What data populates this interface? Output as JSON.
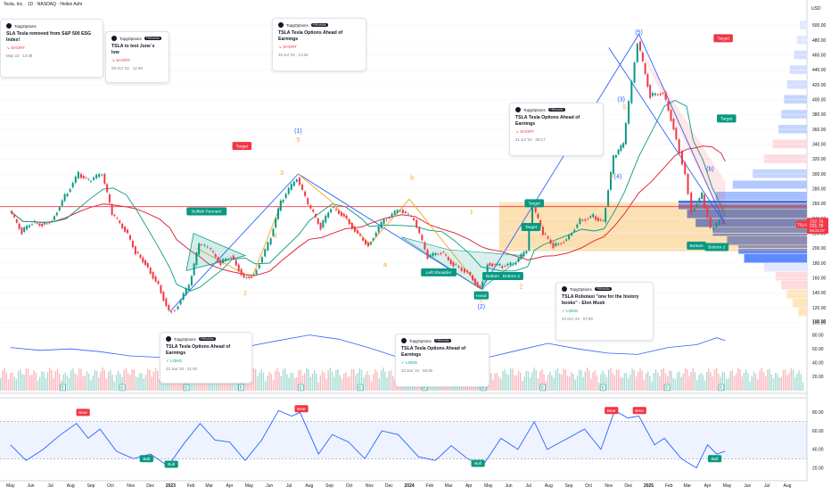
{
  "header": {
    "symbol_line": "Tesla, Inc. · 1D · NASDAQ · Heikin Ashi",
    "currency": "USD"
  },
  "chart_data": {
    "type": "candlestick",
    "title": "Tesla, Inc. · 1D · NASDAQ · Heikin Ashi",
    "x_ticks": [
      "May",
      "Jun",
      "Jul",
      "Aug",
      "Sep",
      "Oct",
      "Nov",
      "Dec",
      "2023",
      "Feb",
      "Mar",
      "Apr",
      "May",
      "Jun",
      "Jul",
      "Aug",
      "Sep",
      "Oct",
      "Nov",
      "Dec",
      "2024",
      "Feb",
      "Mar",
      "Apr",
      "May",
      "Jun",
      "Jul",
      "Aug",
      "Sep",
      "Oct",
      "Nov",
      "Dec",
      "2025",
      "Feb",
      "Mar",
      "Apr",
      "May",
      "Jun",
      "Jul",
      "Aug"
    ],
    "price_axis": {
      "ticks": [
        500,
        480,
        460,
        440,
        420,
        400,
        380,
        360,
        340,
        320,
        300,
        280,
        260,
        240,
        220,
        200,
        180,
        160,
        140,
        120,
        100
      ],
      "range": [
        90,
        510
      ]
    },
    "price_closes": [
      [
        "2022-05-01",
        250
      ],
      [
        "2022-05-20",
        222
      ],
      [
        "2022-06-05",
        235
      ],
      [
        "2022-06-20",
        232
      ],
      [
        "2022-07-05",
        238
      ],
      [
        "2022-07-25",
        270
      ],
      [
        "2022-08-15",
        300
      ],
      [
        "2022-08-30",
        290
      ],
      [
        "2022-09-20",
        300
      ],
      [
        "2022-10-05",
        245
      ],
      [
        "2022-10-25",
        225
      ],
      [
        "2022-11-10",
        195
      ],
      [
        "2022-11-25",
        180
      ],
      [
        "2022-12-15",
        150
      ],
      [
        "2022-12-31",
        115
      ],
      [
        "2023-01-10",
        118
      ],
      [
        "2023-01-31",
        150
      ],
      [
        "2023-02-15",
        205
      ],
      [
        "2023-03-01",
        200
      ],
      [
        "2023-03-20",
        180
      ],
      [
        "2023-04-05",
        190
      ],
      [
        "2023-04-25",
        160
      ],
      [
        "2023-05-10",
        165
      ],
      [
        "2023-06-01",
        205
      ],
      [
        "2023-06-20",
        262
      ],
      [
        "2023-07-15",
        295
      ],
      [
        "2023-08-01",
        258
      ],
      [
        "2023-08-20",
        228
      ],
      [
        "2023-09-05",
        255
      ],
      [
        "2023-09-25",
        244
      ],
      [
        "2023-10-20",
        214
      ],
      [
        "2023-11-01",
        205
      ],
      [
        "2023-11-25",
        238
      ],
      [
        "2023-12-20",
        252
      ],
      [
        "2024-01-10",
        238
      ],
      [
        "2024-01-31",
        188
      ],
      [
        "2024-02-20",
        195
      ],
      [
        "2024-03-10",
        178
      ],
      [
        "2024-04-01",
        168
      ],
      [
        "2024-04-20",
        145
      ],
      [
        "2024-05-01",
        180
      ],
      [
        "2024-05-20",
        176
      ],
      [
        "2024-06-10",
        178
      ],
      [
        "2024-06-30",
        197
      ],
      [
        "2024-07-10",
        255
      ],
      [
        "2024-07-25",
        220
      ],
      [
        "2024-08-10",
        203
      ],
      [
        "2024-08-30",
        212
      ],
      [
        "2024-09-20",
        238
      ],
      [
        "2024-10-10",
        243
      ],
      [
        "2024-10-25",
        235
      ],
      [
        "2024-11-10",
        322
      ],
      [
        "2024-11-25",
        340
      ],
      [
        "2024-12-17",
        478
      ],
      [
        "2025-01-05",
        405
      ],
      [
        "2025-01-25",
        410
      ],
      [
        "2025-02-10",
        362
      ],
      [
        "2025-02-28",
        300
      ],
      [
        "2025-03-10",
        250
      ],
      [
        "2025-03-25",
        272
      ],
      [
        "2025-04-08",
        225
      ],
      [
        "2025-04-22",
        235
      ],
      [
        "2025-04-28",
        232
      ]
    ],
    "price_labels": {
      "last": "232.79",
      "prev": "231.78",
      "countdown": "06:21:07",
      "ticker": "TSLA"
    },
    "horizontal_level": 256,
    "wave_labels": [
      {
        "text": "(5)",
        "date": "2024-12-17",
        "price": 488,
        "color": "#2962ff"
      },
      {
        "text": "(3)",
        "date": "2024-11-20",
        "price": 398,
        "color": "#2962ff"
      },
      {
        "text": "5",
        "date": "2024-11-25",
        "price": 387,
        "color": "#f7a21b"
      },
      {
        "text": "(4)",
        "date": "2024-11-15",
        "price": 294,
        "color": "#2962ff"
      },
      {
        "text": "3",
        "date": "2024-11-05",
        "price": 294,
        "color": "#f7a21b"
      },
      {
        "text": "4",
        "date": "2024-10-25",
        "price": 214,
        "color": "#f7a21b"
      },
      {
        "text": "(1)",
        "date": "2023-07-15",
        "price": 355,
        "color": "#2962ff"
      },
      {
        "text": "5",
        "date": "2023-07-15",
        "price": 343,
        "color": "#f7a21b"
      },
      {
        "text": "3",
        "date": "2023-06-20",
        "price": 299,
        "color": "#f7a21b"
      },
      {
        "text": "4",
        "date": "2023-06-10",
        "price": 214,
        "color": "#f7a21b"
      },
      {
        "text": "b",
        "date": "2024-01-05",
        "price": 292,
        "color": "#f7a21b"
      },
      {
        "text": "a",
        "date": "2023-11-25",
        "price": 175,
        "color": "#f7a21b"
      },
      {
        "text": "c",
        "date": "2024-04-20",
        "price": 128,
        "color": "#f7a21b"
      },
      {
        "text": "(2)",
        "date": "2024-04-20",
        "price": 119,
        "color": "#2962ff"
      },
      {
        "text": "2",
        "date": "2023-04-25",
        "price": 137,
        "color": "#f7a21b"
      },
      {
        "text": "1",
        "date": "2024-04-05",
        "price": 246,
        "color": "#f7a21b"
      },
      {
        "text": "2",
        "date": "2024-06-20",
        "price": 146,
        "color": "#f7a21b"
      },
      {
        "text": "(b)",
        "date": "2025-04-05",
        "price": 304,
        "color": "#2962ff"
      }
    ],
    "chart_tags": [
      {
        "text": "Target",
        "date": "2023-04-20",
        "price": 337,
        "kind": "red"
      },
      {
        "text": "Target",
        "date": "2025-04-25",
        "price": 482,
        "kind": "red"
      },
      {
        "text": "Target",
        "date": "2025-04-30",
        "price": 374,
        "kind": "green"
      },
      {
        "text": "Target",
        "date": "2024-07-10",
        "price": 260,
        "kind": "green"
      },
      {
        "text": "Target",
        "date": "2024-07-05",
        "price": 228,
        "kind": "green"
      },
      {
        "text": "Bullish Pennant",
        "date": "2023-02-25",
        "price": 249,
        "kind": "green"
      },
      {
        "text": "Left Shoulder",
        "date": "2024-02-15",
        "price": 167,
        "kind": "green"
      },
      {
        "text": "Head",
        "date": "2024-04-20",
        "price": 136,
        "kind": "green"
      },
      {
        "text": "Bottom 1",
        "date": "2024-05-10",
        "price": 162,
        "kind": "green"
      },
      {
        "text": "Bottom 2",
        "date": "2024-06-05",
        "price": 162,
        "kind": "green"
      },
      {
        "text": "Bottom",
        "date": "2025-03-15",
        "price": 203,
        "kind": "green"
      },
      {
        "text": "Bottom 2",
        "date": "2025-04-15",
        "price": 201,
        "kind": "green"
      }
    ],
    "rsi": {
      "axis_ticks": [
        80,
        60,
        40,
        20
      ],
      "band": [
        30,
        70
      ],
      "values": [
        [
          "2022-05-01",
          45
        ],
        [
          "2022-05-25",
          28
        ],
        [
          "2022-06-20",
          40
        ],
        [
          "2022-07-15",
          55
        ],
        [
          "2022-08-10",
          68
        ],
        [
          "2022-08-28",
          52
        ],
        [
          "2022-09-15",
          62
        ],
        [
          "2022-10-10",
          38
        ],
        [
          "2022-11-05",
          30
        ],
        [
          "2022-12-01",
          35
        ],
        [
          "2022-12-28",
          22
        ],
        [
          "2023-01-20",
          45
        ],
        [
          "2023-02-15",
          68
        ],
        [
          "2023-03-10",
          50
        ],
        [
          "2023-04-01",
          48
        ],
        [
          "2023-04-25",
          28
        ],
        [
          "2023-05-20",
          50
        ],
        [
          "2023-06-15",
          82
        ],
        [
          "2023-07-05",
          76
        ],
        [
          "2023-07-18",
          80
        ],
        [
          "2023-08-15",
          35
        ],
        [
          "2023-09-05",
          56
        ],
        [
          "2023-09-30",
          48
        ],
        [
          "2023-10-25",
          30
        ],
        [
          "2023-11-20",
          60
        ],
        [
          "2023-12-15",
          56
        ],
        [
          "2024-01-15",
          32
        ],
        [
          "2024-02-10",
          28
        ],
        [
          "2024-03-05",
          44
        ],
        [
          "2024-03-30",
          30
        ],
        [
          "2024-04-22",
          22
        ],
        [
          "2024-05-20",
          52
        ],
        [
          "2024-06-15",
          40
        ],
        [
          "2024-07-10",
          70
        ],
        [
          "2024-07-30",
          40
        ],
        [
          "2024-08-25",
          50
        ],
        [
          "2024-09-25",
          62
        ],
        [
          "2024-10-20",
          40
        ],
        [
          "2024-11-10",
          82
        ],
        [
          "2024-11-30",
          74
        ],
        [
          "2024-12-17",
          76
        ],
        [
          "2025-01-10",
          45
        ],
        [
          "2025-01-25",
          52
        ],
        [
          "2025-02-20",
          30
        ],
        [
          "2025-03-15",
          20
        ],
        [
          "2025-04-01",
          45
        ],
        [
          "2025-04-15",
          35
        ],
        [
          "2025-04-28",
          38
        ]
      ],
      "labels": [
        {
          "text": "Bear",
          "date": "2022-08-20",
          "value": 80,
          "kind": "red"
        },
        {
          "text": "Bull",
          "date": "2023-01-02",
          "value": 24,
          "kind": "green"
        },
        {
          "text": "Bull",
          "date": "2022-11-25",
          "value": 30,
          "kind": "green"
        },
        {
          "text": "Bear",
          "date": "2023-07-20",
          "value": 84,
          "kind": "red"
        },
        {
          "text": "Bull",
          "date": "2024-04-15",
          "value": 25,
          "kind": "green"
        },
        {
          "text": "Bear",
          "date": "2024-11-05",
          "value": 82,
          "kind": "red"
        },
        {
          "text": "Bear",
          "date": "2024-12-18",
          "value": 82,
          "kind": "red"
        },
        {
          "text": "Bull",
          "date": "2025-04-12",
          "value": 30,
          "kind": "green"
        }
      ]
    },
    "mfi": {
      "axis_ticks": [
        100,
        80,
        60,
        40,
        20
      ],
      "values": [
        [
          "2022-05-01",
          62
        ],
        [
          "2022-06-15",
          58
        ],
        [
          "2022-08-01",
          60
        ],
        [
          "2022-09-15",
          56
        ],
        [
          "2022-10-30",
          50
        ],
        [
          "2022-12-15",
          48
        ],
        [
          "2023-01-31",
          62
        ],
        [
          "2023-03-15",
          66
        ],
        [
          "2023-05-01",
          64
        ],
        [
          "2023-06-15",
          72
        ],
        [
          "2023-08-01",
          80
        ],
        [
          "2023-09-15",
          74
        ],
        [
          "2023-10-30",
          62
        ],
        [
          "2023-12-15",
          48
        ],
        [
          "2024-01-31",
          42
        ],
        [
          "2024-03-15",
          46
        ],
        [
          "2024-05-01",
          48
        ],
        [
          "2024-06-15",
          58
        ],
        [
          "2024-07-31",
          68
        ],
        [
          "2024-09-15",
          60
        ],
        [
          "2024-10-30",
          54
        ],
        [
          "2024-12-15",
          52
        ],
        [
          "2025-01-31",
          62
        ],
        [
          "2025-03-15",
          66
        ],
        [
          "2025-04-15",
          76
        ],
        [
          "2025-04-28",
          72
        ]
      ]
    },
    "events": [
      {
        "date": "2022-07-20",
        "kind": "E"
      },
      {
        "date": "2022-10-19",
        "kind": "E"
      },
      {
        "date": "2023-01-25",
        "kind": "E"
      },
      {
        "date": "2023-04-19",
        "kind": "E"
      },
      {
        "date": "2023-07-19",
        "kind": "E"
      },
      {
        "date": "2023-10-18",
        "kind": "E"
      },
      {
        "date": "2024-01-24",
        "kind": "E"
      },
      {
        "date": "2024-04-23",
        "kind": "E"
      },
      {
        "date": "2024-07-23",
        "kind": "E"
      },
      {
        "date": "2024-10-23",
        "kind": "E"
      },
      {
        "date": "2025-01-29",
        "kind": "E"
      },
      {
        "date": "2025-04-22",
        "kind": "E"
      }
    ]
  },
  "ideas": [
    {
      "author": "TopgOptions",
      "badge": "PREMIUM",
      "title": "SLA Tesla removed from S&P 500 ESG Index!",
      "direction": "SHORT",
      "date": "May 22 · 13:38"
    },
    {
      "author": "TopgOptions",
      "badge": "PREMIUM",
      "title": "TSLA to test June`s low",
      "direction": "SHORT",
      "date": "09 Oct '22 · 12:36"
    },
    {
      "author": "TopgOptions",
      "badge": "PREMIUM",
      "title": "TSLA Tesla Options Ahead of Earnings",
      "direction": "SHORT",
      "date": "15 Jul '23 · 13:34"
    },
    {
      "author": "TopgOptions",
      "badge": "PREMIUM",
      "title": "TSLA Tesla Options Ahead of Earnings",
      "direction": "SHORT",
      "date": "21 Jul '24 · 09:17"
    },
    {
      "author": "TopgOptions",
      "badge": "PREMIUM",
      "title": "TSLA Robotaxi \"one for the history books\" - Elon Musk",
      "direction": "LONG",
      "date": "10 Oct '24 · 07:00"
    },
    {
      "author": "TopgOptions",
      "badge": "PREMIUM",
      "title": "TSLA Tesla Options Ahead of Earnings",
      "direction": "LONG",
      "date": "22 Jan '23 · 21:40"
    },
    {
      "author": "TopgOptions",
      "badge": "PREMIUM",
      "title": "TSLA Tesla Options Ahead of Earnings",
      "direction": "LONG",
      "date": "23 Jan '24 · 08:35"
    }
  ]
}
